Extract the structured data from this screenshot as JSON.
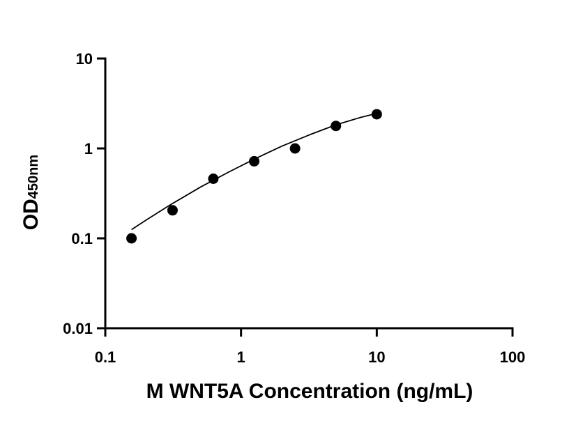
{
  "chart_data": {
    "type": "scatter",
    "x_scale": "log",
    "y_scale": "log",
    "xlim": [
      0.1,
      100
    ],
    "ylim": [
      0.01,
      10
    ],
    "x_ticks": [
      "0.1",
      "1",
      "10",
      "100"
    ],
    "y_ticks": [
      "0.01",
      "0.1",
      "1",
      "10"
    ],
    "xlabel": "M WNT5A Concentration (ng/mL)",
    "ylabel_main": "OD",
    "ylabel_sub": "450nm",
    "grid": false,
    "legend": "none",
    "series": [
      {
        "points": [
          {
            "x": 0.156,
            "y": 0.1
          },
          {
            "x": 0.313,
            "y": 0.205
          },
          {
            "x": 0.625,
            "y": 0.46
          },
          {
            "x": 1.25,
            "y": 0.72
          },
          {
            "x": 2.5,
            "y": 1.0
          },
          {
            "x": 5,
            "y": 1.78
          },
          {
            "x": 10,
            "y": 2.4
          }
        ],
        "fit_curve": {
          "x": [
            0.156,
            0.2,
            0.3,
            0.5,
            0.8,
            1.25,
            2,
            3.2,
            5,
            7.5,
            10
          ],
          "y": [
            0.125,
            0.16,
            0.235,
            0.37,
            0.54,
            0.76,
            1.06,
            1.42,
            1.83,
            2.2,
            2.45
          ]
        },
        "marker_color": "#000000",
        "line_color": "#000000"
      }
    ]
  }
}
